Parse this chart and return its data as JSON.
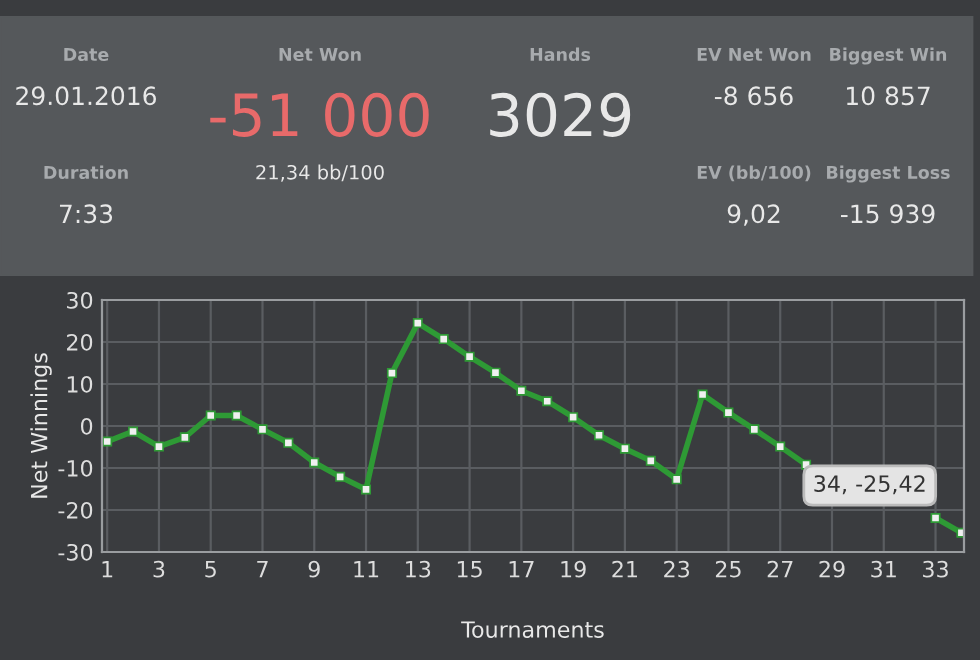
{
  "chart_data": [
    {
      "type": "other",
      "annotations": [
        "Date",
        "29.01.2016",
        "Net Won",
        "-51 000",
        "Hands",
        "3029",
        "EV Net Won",
        "-8 656",
        "Biggest Win",
        "10 857",
        "Duration",
        "7:33",
        "21,34 bb/100",
        "EV (bb/100)",
        "9,02",
        "Biggest Loss",
        "-15 939"
      ]
    },
    {
      "type": "line",
      "xlabel": "Tournaments",
      "ylabel": "Net Winnings",
      "x": [
        1,
        2,
        3,
        4,
        5,
        6,
        7,
        8,
        9,
        10,
        11,
        12,
        13,
        14,
        15,
        16,
        17,
        18,
        19,
        20,
        21,
        22,
        23,
        24,
        25,
        26,
        27,
        28,
        29,
        30,
        31,
        32,
        33,
        34
      ],
      "series": [
        {
          "color": "#2e9a35",
          "values": [
            -3.7,
            -1.3,
            -4.9,
            -2.7,
            2.5,
            2.5,
            -0.8,
            -4.0,
            -8.7,
            -12.1,
            -15.1,
            12.6,
            24.5,
            20.7,
            16.5,
            12.7,
            8.4,
            5.9,
            2.1,
            -2.2,
            -5.4,
            -8.3,
            -12.7,
            7.5,
            3.2,
            -0.8,
            -4.9,
            -9.2,
            null,
            null,
            null,
            null,
            -21.9,
            -25.42
          ]
        }
      ],
      "xlim": [
        0.8,
        34.1
      ],
      "ylim": [
        -30,
        30
      ],
      "xticks": [
        1,
        3,
        5,
        7,
        9,
        11,
        13,
        15,
        17,
        19,
        21,
        23,
        25,
        27,
        29,
        31,
        33
      ],
      "yticks": [
        -30,
        -20,
        -10,
        0,
        10,
        20,
        30
      ],
      "grid": true,
      "marker": "square",
      "line_style": "solid",
      "annotations": [
        {
          "text": "34, -25,42",
          "x": 34,
          "y": -25.42
        }
      ]
    }
  ]
}
